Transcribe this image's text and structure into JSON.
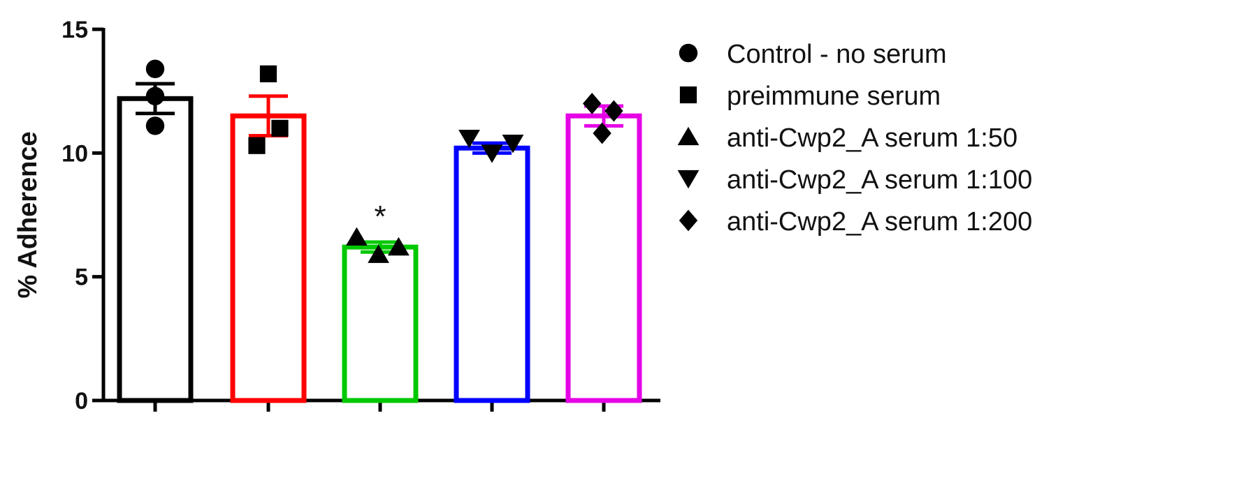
{
  "chart_data": {
    "type": "bar",
    "title": "",
    "xlabel": "",
    "ylabel": "% Adherence",
    "ylim": [
      0,
      15
    ],
    "yticks": [
      0,
      5,
      10,
      15
    ],
    "grid": false,
    "legend_position": "right",
    "series": [
      {
        "name": "Control - no serum",
        "marker": "circle",
        "color": "#000000",
        "mean": 12.2,
        "sem": 0.6,
        "points": [
          13.4,
          12.3,
          11.1
        ]
      },
      {
        "name": "preimmune serum",
        "marker": "square",
        "color": "#ff0000",
        "mean": 11.5,
        "sem": 0.8,
        "points": [
          13.2,
          11.0,
          10.3
        ]
      },
      {
        "name": "anti-Cwp2_A serum 1:50",
        "marker": "triangle-up",
        "color": "#00c800",
        "mean": 6.2,
        "sem": 0.2,
        "points": [
          6.6,
          5.9,
          6.2
        ]
      },
      {
        "name": "anti-Cwp2_A serum 1:100",
        "marker": "triangle-down",
        "color": "#0000ff",
        "mean": 10.2,
        "sem": 0.2,
        "points": [
          10.6,
          10.0,
          10.4
        ]
      },
      {
        "name": "anti-Cwp2_A serum 1:200",
        "marker": "diamond",
        "color": "#e600e6",
        "mean": 11.5,
        "sem": 0.4,
        "points": [
          12.0,
          11.7,
          10.8
        ]
      }
    ],
    "annotations": [
      {
        "series_index": 2,
        "text": "*"
      }
    ]
  }
}
